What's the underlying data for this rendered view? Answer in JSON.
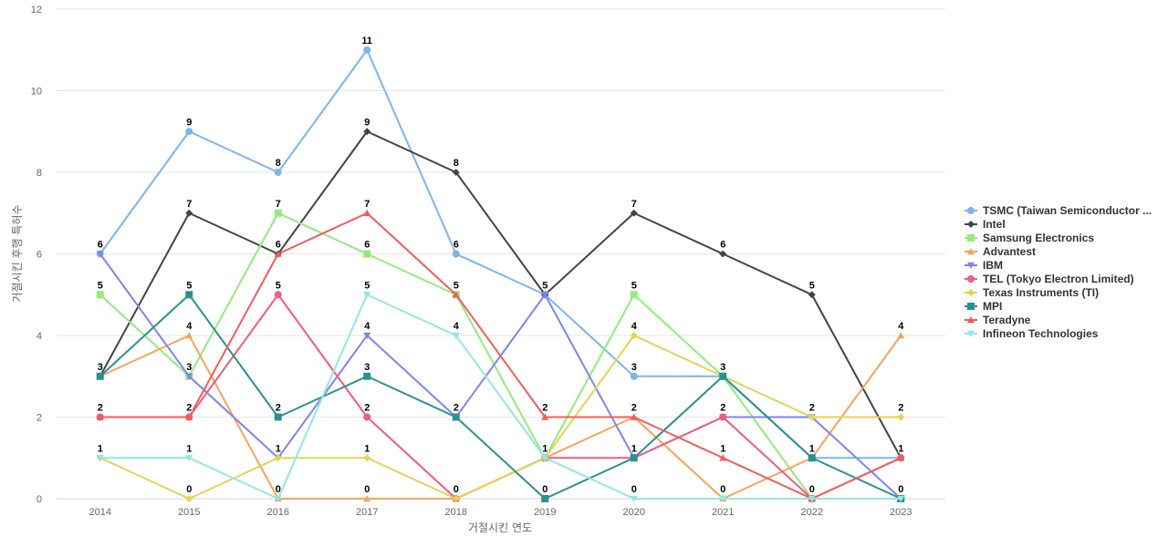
{
  "chart_data": {
    "type": "line",
    "xlabel": "거절시킨 연도",
    "ylabel": "거절시킨 후행 특허수",
    "ylim": [
      0,
      12
    ],
    "yticks": [
      0,
      2,
      4,
      6,
      8,
      10,
      12
    ],
    "categories": [
      "2014",
      "2015",
      "2016",
      "2017",
      "2018",
      "2019",
      "2020",
      "2021",
      "2022",
      "2023"
    ],
    "grid": true,
    "legend_position": "right",
    "series": [
      {
        "name": "TSMC (Taiwan Semiconductor ...",
        "color": "#7cb5ec",
        "marker": "circle",
        "values": [
          6,
          9,
          8,
          11,
          6,
          5,
          3,
          3,
          1,
          1
        ]
      },
      {
        "name": "Intel",
        "color": "#434348",
        "marker": "diamond",
        "values": [
          3,
          7,
          6,
          9,
          8,
          5,
          7,
          6,
          5,
          1
        ]
      },
      {
        "name": "Samsung Electronics",
        "color": "#90ed7d",
        "marker": "square",
        "values": [
          5,
          3,
          7,
          6,
          5,
          1,
          5,
          3,
          0,
          0
        ]
      },
      {
        "name": "Advantest",
        "color": "#f7a35c",
        "marker": "triangle",
        "values": [
          3,
          4,
          0,
          0,
          0,
          1,
          2,
          0,
          1,
          4
        ]
      },
      {
        "name": "IBM",
        "color": "#8085e9",
        "marker": "triangle-down",
        "values": [
          6,
          3,
          1,
          4,
          2,
          5,
          1,
          2,
          2,
          0
        ]
      },
      {
        "name": "TEL (Tokyo Electron Limited)",
        "color": "#f15c80",
        "marker": "circle",
        "values": [
          2,
          2,
          5,
          2,
          0,
          1,
          1,
          2,
          0,
          1
        ]
      },
      {
        "name": "Texas Instruments (TI)",
        "color": "#e4d354",
        "marker": "diamond",
        "values": [
          1,
          0,
          1,
          1,
          0,
          1,
          4,
          3,
          2,
          2
        ]
      },
      {
        "name": "MPI",
        "color": "#2b908f",
        "marker": "square",
        "values": [
          3,
          5,
          2,
          3,
          2,
          0,
          1,
          3,
          1,
          0
        ]
      },
      {
        "name": "Teradyne",
        "color": "#f45b5b",
        "marker": "triangle",
        "values": [
          2,
          2,
          6,
          7,
          5,
          2,
          2,
          1,
          0,
          1
        ]
      },
      {
        "name": "Infineon Technologies",
        "color": "#91e8e1",
        "marker": "triangle-down",
        "values": [
          1,
          1,
          0,
          5,
          4,
          1,
          0,
          0,
          0,
          0
        ]
      }
    ]
  }
}
